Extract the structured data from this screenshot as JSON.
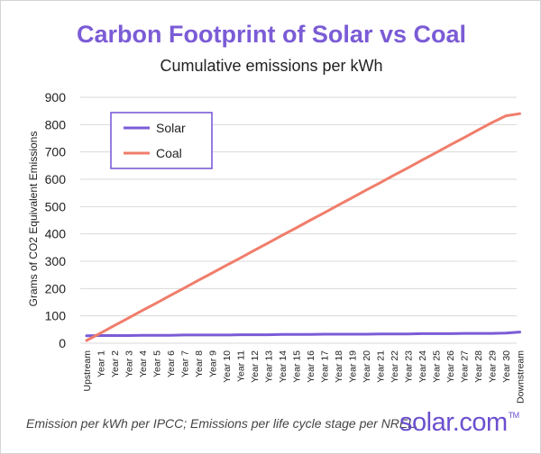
{
  "chart_data": {
    "type": "line",
    "title": "Carbon Footprint of Solar vs Coal",
    "subtitle": "Cumulative emissions per kWh",
    "xlabel": "",
    "ylabel": "Grams of CO2 Equivalent Emissions",
    "ylim": [
      0,
      900
    ],
    "yticks": [
      0,
      100,
      200,
      300,
      400,
      500,
      600,
      700,
      800,
      900
    ],
    "grid": "horizontal",
    "legend_placement": "top-left",
    "categories": [
      "Upstream",
      "Year 1",
      "Year 2",
      "Year 3",
      "Year 4",
      "Year 5",
      "Year 6",
      "Year 7",
      "Year 8",
      "Year 9",
      "Year 10",
      "Year 11",
      "Year 12",
      "Year 13",
      "Year 14",
      "Year 15",
      "Year 16",
      "Year 17",
      "Year 18",
      "Year 19",
      "Year 20",
      "Year 21",
      "Year 22",
      "Year 23",
      "Year 24",
      "Year 25",
      "Year 26",
      "Year 27",
      "Year 28",
      "Year 29",
      "Year 30",
      "Downstream"
    ],
    "series": [
      {
        "name": "Solar",
        "color": "#7b5cd6",
        "values": [
          27,
          28,
          28,
          28,
          29,
          29,
          29,
          30,
          30,
          30,
          30,
          31,
          31,
          31,
          32,
          32,
          32,
          33,
          33,
          33,
          33,
          34,
          34,
          34,
          35,
          35,
          35,
          36,
          36,
          36,
          37,
          41
        ]
      },
      {
        "name": "Coal",
        "color": "#f07d6b",
        "values": [
          10,
          37,
          65,
          92,
          120,
          147,
          175,
          202,
          230,
          257,
          285,
          312,
          340,
          367,
          395,
          422,
          450,
          477,
          505,
          532,
          560,
          587,
          615,
          642,
          670,
          697,
          725,
          752,
          780,
          807,
          832,
          840
        ]
      }
    ]
  },
  "footer": {
    "note": "Emission per kWh per IPCC; Emissions per life cycle stage per NREL.",
    "brand": "solar.com",
    "brand_mark": "TM"
  }
}
